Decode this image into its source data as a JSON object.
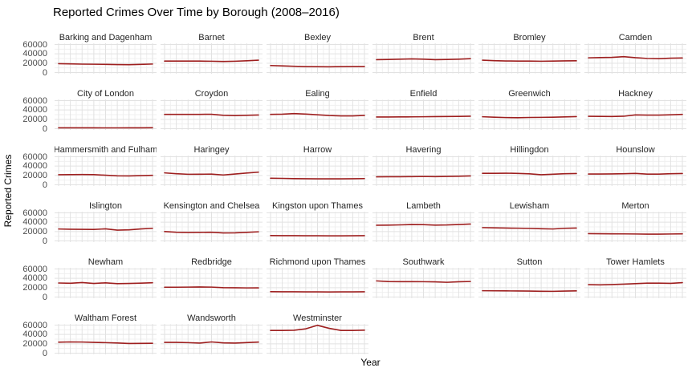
{
  "chart_data": {
    "type": "line",
    "title": "Reported Crimes Over Time by Borough (2008–2016)",
    "xlabel": "Year",
    "ylabel": "Reported Crimes",
    "x": [
      2008,
      2009,
      2010,
      2011,
      2012,
      2013,
      2014,
      2015,
      2016
    ],
    "ylim": [
      0,
      60000
    ],
    "yticks": [
      0,
      20000,
      40000,
      60000
    ],
    "x_tick_labels_shown": false,
    "grid": "major+minor",
    "legend": "none",
    "line_color": "#9e1f1f",
    "grid_major_color": "#e2e2e2",
    "grid_minor_color": "#f0f0f0",
    "facets": [
      {
        "name": "Barking and Dagenham",
        "values": [
          19000,
          18500,
          18000,
          17800,
          17500,
          17000,
          16800,
          17500,
          18200
        ]
      },
      {
        "name": "Barnet",
        "values": [
          24500,
          24500,
          24600,
          24500,
          24200,
          23600,
          24200,
          25200,
          26500
        ]
      },
      {
        "name": "Bexley",
        "values": [
          15000,
          14300,
          13400,
          12800,
          12500,
          12400,
          12700,
          13000,
          13000
        ]
      },
      {
        "name": "Brent",
        "values": [
          27500,
          28000,
          28600,
          29200,
          28600,
          27600,
          28000,
          28600,
          29600
        ]
      },
      {
        "name": "Bromley",
        "values": [
          26500,
          25400,
          24800,
          24500,
          24500,
          24200,
          24500,
          25000,
          25100
        ]
      },
      {
        "name": "Camden",
        "values": [
          31500,
          32000,
          32500,
          34000,
          31800,
          30200,
          29600,
          30800,
          31200
        ]
      },
      {
        "name": "City of London",
        "values": [
          1800,
          1800,
          1800,
          1800,
          1700,
          1700,
          1800,
          1900,
          2000
        ]
      },
      {
        "name": "Croydon",
        "values": [
          30500,
          30500,
          30500,
          30600,
          30800,
          28600,
          28000,
          28600,
          29200
        ]
      },
      {
        "name": "Ealing",
        "values": [
          30500,
          31000,
          32200,
          31200,
          29600,
          28200,
          27400,
          27400,
          28400
        ]
      },
      {
        "name": "Enfield",
        "values": [
          25000,
          25000,
          25100,
          25300,
          25500,
          25800,
          26000,
          26300,
          26700
        ]
      },
      {
        "name": "Greenwich",
        "values": [
          25500,
          24500,
          23800,
          23500,
          24000,
          24200,
          24600,
          25200,
          25900
        ]
      },
      {
        "name": "Hackney",
        "values": [
          26500,
          26200,
          26000,
          26600,
          29400,
          29000,
          29100,
          29600,
          30600
        ]
      },
      {
        "name": "Hammersmith and Fulham",
        "values": [
          21500,
          21800,
          22000,
          21800,
          20400,
          19200,
          19000,
          19600,
          20200
        ]
      },
      {
        "name": "Haringey",
        "values": [
          25500,
          23600,
          22500,
          22600,
          22900,
          21000,
          23000,
          25200,
          27000
        ]
      },
      {
        "name": "Harrow",
        "values": [
          14000,
          13700,
          13200,
          13000,
          12800,
          12700,
          12800,
          13000,
          13300
        ]
      },
      {
        "name": "Havering",
        "values": [
          17000,
          17200,
          17300,
          17500,
          17800,
          17500,
          17900,
          18300,
          18900
        ]
      },
      {
        "name": "Hillingdon",
        "values": [
          24500,
          24500,
          24800,
          24400,
          23400,
          21600,
          22600,
          23600,
          24100
        ]
      },
      {
        "name": "Hounslow",
        "values": [
          23000,
          23000,
          23200,
          23600,
          24400,
          22800,
          22900,
          23600,
          24100
        ]
      },
      {
        "name": "Islington",
        "values": [
          25500,
          25000,
          24800,
          24600,
          25800,
          23100,
          23600,
          25600,
          27000
        ]
      },
      {
        "name": "Kensington and Chelsea",
        "values": [
          20000,
          18600,
          18100,
          18300,
          18600,
          17100,
          17300,
          18300,
          19500
        ]
      },
      {
        "name": "Kingston upon Thames",
        "values": [
          11500,
          11300,
          11200,
          11000,
          11000,
          10800,
          10900,
          11000,
          11300
        ]
      },
      {
        "name": "Lambeth",
        "values": [
          33500,
          33800,
          34300,
          35100,
          34800,
          33800,
          34100,
          35100,
          36100
        ]
      },
      {
        "name": "Lewisham",
        "values": [
          28500,
          28000,
          27500,
          27200,
          26800,
          26000,
          25500,
          27000,
          27600
        ]
      },
      {
        "name": "Merton",
        "values": [
          15500,
          15300,
          15100,
          15000,
          14800,
          14500,
          14500,
          14800,
          15100
        ]
      },
      {
        "name": "Newham",
        "values": [
          30000,
          29400,
          31000,
          29000,
          30400,
          28600,
          29000,
          29600,
          30600
        ]
      },
      {
        "name": "Redbridge",
        "values": [
          21000,
          21000,
          21200,
          21500,
          21200,
          20100,
          19800,
          19500,
          19600
        ]
      },
      {
        "name": "Richmond upon Thames",
        "values": [
          11500,
          11300,
          11200,
          11100,
          11000,
          10900,
          11000,
          11100,
          11300
        ]
      },
      {
        "name": "Southwark",
        "values": [
          34500,
          33100,
          32900,
          32900,
          32800,
          32500,
          31500,
          32600,
          33200
        ]
      },
      {
        "name": "Sutton",
        "values": [
          13500,
          13300,
          13100,
          13000,
          12800,
          12400,
          12200,
          12800,
          13100
        ]
      },
      {
        "name": "Tower Hamlets",
        "values": [
          26500,
          26100,
          26600,
          27600,
          28600,
          29600,
          29600,
          29200,
          30700
        ]
      },
      {
        "name": "Waltham Forest",
        "values": [
          23500,
          24000,
          23800,
          23100,
          22500,
          21800,
          20600,
          20900,
          21100
        ]
      },
      {
        "name": "Wandsworth",
        "values": [
          23000,
          23000,
          22500,
          21600,
          24000,
          21900,
          21500,
          22600,
          23600
        ]
      },
      {
        "name": "Westminster",
        "values": [
          48500,
          48600,
          49000,
          52000,
          59500,
          53000,
          48600,
          48500,
          49100
        ]
      }
    ],
    "layout": {
      "columns": 6,
      "rows": 6
    }
  }
}
